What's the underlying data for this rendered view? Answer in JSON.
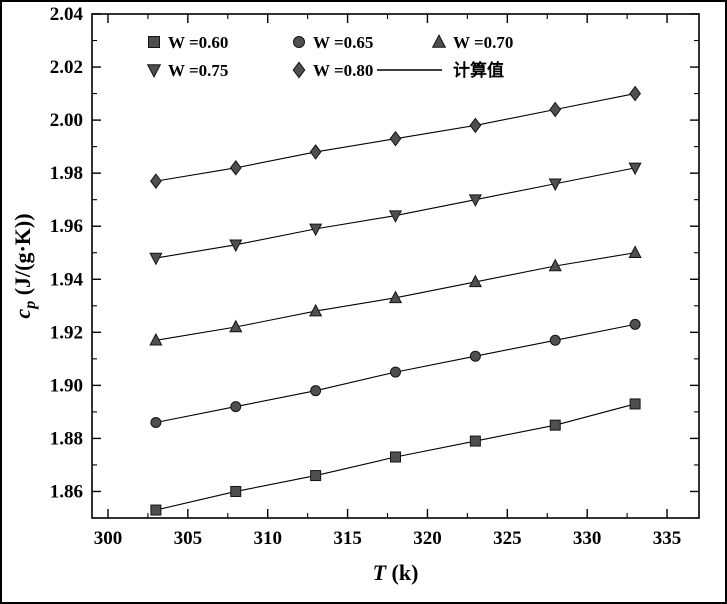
{
  "figure": {
    "background": "#ffffff",
    "border_color": "#000000"
  },
  "chart_data": {
    "type": "scatter",
    "title": "",
    "x": [
      303,
      308,
      313,
      318,
      323,
      328,
      333
    ],
    "series": [
      {
        "name": "W =0.60",
        "marker": "square",
        "values": [
          1.853,
          1.86,
          1.866,
          1.873,
          1.879,
          1.885,
          1.893
        ]
      },
      {
        "name": "W =0.65",
        "marker": "circle",
        "values": [
          1.886,
          1.892,
          1.898,
          1.905,
          1.911,
          1.917,
          1.923
        ]
      },
      {
        "name": "W =0.70",
        "marker": "triangle-up",
        "values": [
          1.917,
          1.922,
          1.928,
          1.933,
          1.939,
          1.945,
          1.95
        ]
      },
      {
        "name": "W =0.75",
        "marker": "triangle-down",
        "values": [
          1.948,
          1.953,
          1.959,
          1.964,
          1.97,
          1.976,
          1.982
        ]
      },
      {
        "name": "W =0.80",
        "marker": "diamond",
        "values": [
          1.977,
          1.982,
          1.988,
          1.993,
          1.998,
          2.004,
          2.01
        ]
      }
    ],
    "fit_line_label": "计算值",
    "xlabel": "T (k)",
    "ylabel": "cp (J/(g·K))",
    "xlabel_parts": {
      "variable": "T",
      "rest": " (k)"
    },
    "ylabel_parts": {
      "variable": "c",
      "subscript": "p",
      "rest": " (J/(g·K))"
    },
    "xlim": [
      299,
      337
    ],
    "ylim": [
      1.85,
      2.04
    ],
    "xticks": [
      300,
      305,
      310,
      315,
      320,
      325,
      330,
      335
    ],
    "yticks": [
      1.86,
      1.88,
      1.9,
      1.92,
      1.94,
      1.96,
      1.98,
      2.0,
      2.02,
      2.04
    ],
    "x_minor_step": 2.5,
    "y_minor_step": 0.01,
    "grid": false,
    "legend_position": "top-left-inside",
    "marker_fill": "#4f4f4f",
    "marker_stroke": "#141414",
    "line_color": "#000000",
    "axis_color": "#000000"
  }
}
